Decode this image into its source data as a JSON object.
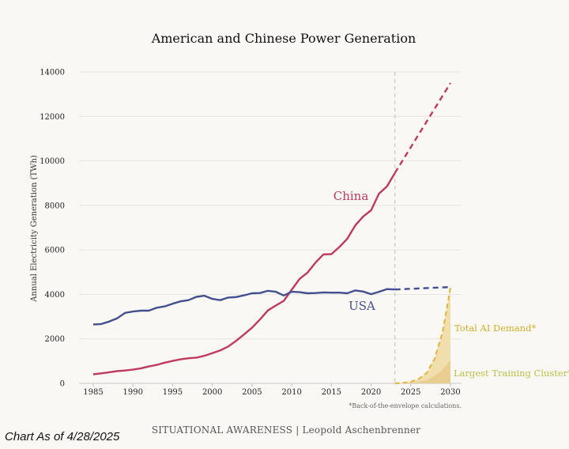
{
  "chart_data": {
    "type": "line",
    "title": "American and Chinese Power Generation",
    "xlabel": "",
    "ylabel": "Annual Electricity Generation (TWh)",
    "xlim": [
      1985,
      2030
    ],
    "ylim": [
      0,
      14000
    ],
    "x_ticks": [
      1985,
      1990,
      1995,
      2000,
      2005,
      2010,
      2015,
      2020,
      2025,
      2030
    ],
    "y_ticks": [
      0,
      2000,
      4000,
      6000,
      8000,
      10000,
      12000,
      14000
    ],
    "grid": "horizontal",
    "forecast_start": 2023,
    "series": [
      {
        "name": "China",
        "label": "China",
        "color": "#c0395e",
        "historical": {
          "x": [
            1985,
            1986,
            1987,
            1988,
            1989,
            1990,
            1991,
            1992,
            1993,
            1994,
            1995,
            1996,
            1997,
            1998,
            1999,
            2000,
            2001,
            2002,
            2003,
            2004,
            2005,
            2006,
            2007,
            2008,
            2009,
            2010,
            2011,
            2012,
            2013,
            2014,
            2015,
            2016,
            2017,
            2018,
            2019,
            2020,
            2021,
            2022,
            2023
          ],
          "y": [
            410,
            450,
            500,
            550,
            580,
            620,
            680,
            760,
            830,
            930,
            1010,
            1080,
            1130,
            1160,
            1240,
            1360,
            1480,
            1660,
            1910,
            2200,
            2500,
            2870,
            3280,
            3500,
            3710,
            4210,
            4700,
            4980,
            5430,
            5800,
            5810,
            6130,
            6500,
            7100,
            7500,
            7780,
            8530,
            8850,
            9460
          ]
        },
        "projection": {
          "x": [
            2023,
            2030
          ],
          "y": [
            9460,
            13500
          ]
        }
      },
      {
        "name": "USA",
        "label": "USA",
        "color": "#434f8f",
        "historical": {
          "x": [
            1985,
            1986,
            1987,
            1988,
            1989,
            1990,
            1991,
            1992,
            1993,
            1994,
            1995,
            1996,
            1997,
            1998,
            1999,
            2000,
            2001,
            2002,
            2003,
            2004,
            2005,
            2006,
            2007,
            2008,
            2009,
            2010,
            2011,
            2012,
            2013,
            2014,
            2015,
            2016,
            2017,
            2018,
            2019,
            2020,
            2021,
            2022,
            2023
          ],
          "y": [
            2650,
            2670,
            2780,
            2920,
            3170,
            3230,
            3270,
            3270,
            3400,
            3460,
            3580,
            3690,
            3740,
            3890,
            3940,
            3800,
            3740,
            3860,
            3880,
            3960,
            4050,
            4060,
            4160,
            4120,
            3950,
            4120,
            4100,
            4050,
            4060,
            4090,
            4080,
            4080,
            4050,
            4180,
            4130,
            4010,
            4120,
            4240,
            4220
          ]
        },
        "projection": {
          "x": [
            2023,
            2030
          ],
          "y": [
            4220,
            4330
          ]
        }
      },
      {
        "name": "Total AI Demand*",
        "label": "Total AI Demand*",
        "color": "#e2b43c",
        "fill": "#f0d9a0",
        "x": [
          2023,
          2024,
          2025,
          2026,
          2027,
          2028,
          2029,
          2030
        ],
        "y": [
          0,
          20,
          70,
          200,
          470,
          1100,
          2300,
          4300
        ]
      },
      {
        "name": "Largest Training Cluster*",
        "label": "Largest Training Cluster*",
        "color": "#b9c24a",
        "fill": "#e8cc8f",
        "x": [
          2023,
          2024,
          2025,
          2026,
          2027,
          2028,
          2029,
          2030
        ],
        "y": [
          0,
          5,
          20,
          60,
          150,
          330,
          620,
          1050
        ]
      }
    ],
    "footnote": "*Back-of-the-envelope calculations.",
    "source": "SITUATIONAL AWARENESS | Leopold Aschenbrenner",
    "as_of": "Chart As of 4/28/2025"
  }
}
